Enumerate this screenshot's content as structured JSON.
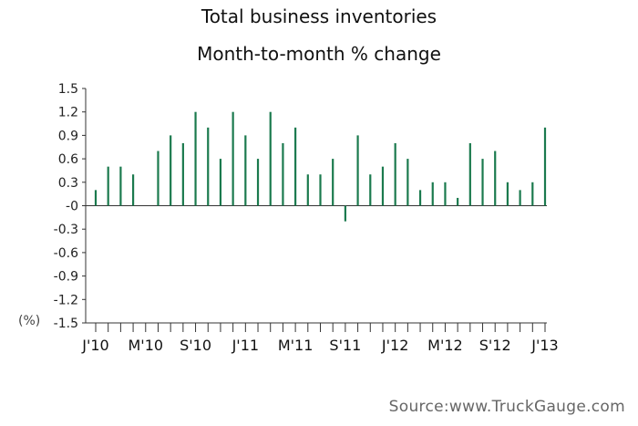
{
  "chart_data": {
    "type": "bar",
    "title": "Total business inventories",
    "subtitle": "Month-to-month % change",
    "ylabel": "(%)",
    "xlabel": "",
    "ylim": [
      -1.5,
      1.5
    ],
    "yticks": [
      1.5,
      1.2,
      0.9,
      0.6,
      0.3,
      0,
      -0.3,
      -0.6,
      -0.9,
      -1.2,
      -1.5
    ],
    "ytick_labels": [
      "1.5",
      "1.2",
      "0.9",
      "0.6",
      "0.3",
      "-0",
      "-0.3",
      "-0.6",
      "-0.9",
      "-1.2",
      "-1.5"
    ],
    "x_tick_labels": [
      {
        "index": 0,
        "label": "J'10"
      },
      {
        "index": 4,
        "label": "M'10"
      },
      {
        "index": 8,
        "label": "S'10"
      },
      {
        "index": 12,
        "label": "J'11"
      },
      {
        "index": 16,
        "label": "M'11"
      },
      {
        "index": 20,
        "label": "S'11"
      },
      {
        "index": 24,
        "label": "J'12"
      },
      {
        "index": 28,
        "label": "M'12"
      },
      {
        "index": 32,
        "label": "S'12"
      },
      {
        "index": 36,
        "label": "J'13"
      }
    ],
    "values": [
      0.2,
      0.5,
      0.5,
      0.4,
      null,
      0.7,
      0.9,
      0.8,
      1.2,
      1.0,
      0.6,
      1.2,
      0.9,
      0.6,
      1.2,
      0.8,
      1.0,
      0.4,
      0.4,
      0.6,
      -0.2,
      0.9,
      0.4,
      0.5,
      0.8,
      0.6,
      0.2,
      0.3,
      0.3,
      0.1,
      0.8,
      0.6,
      0.7,
      0.3,
      0.2,
      0.3,
      1.0
    ],
    "bar_color": "#1b7a4e",
    "grid": false
  },
  "source": "Source:www.TruckGauge.com"
}
